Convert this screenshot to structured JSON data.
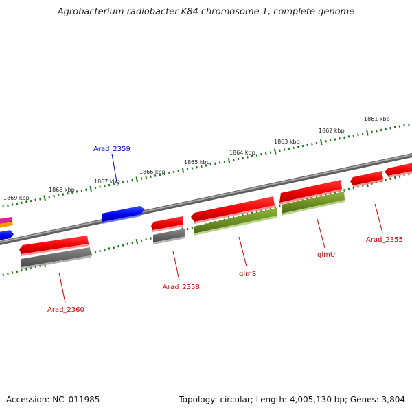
{
  "title": "Agrobacterium radiobacter K84 chromosome 1, complete genome",
  "footer": {
    "accession": "Accession: NC_011985",
    "topology": "Topology: circular; Length: 4,005,130 bp; Genes: 3,804"
  },
  "colors": {
    "cds": "#ff0000",
    "cds_blue": "#0000ff",
    "feature_gray": "#666666",
    "feature_olive": "#6b8e23",
    "ticks": "#1a7a1a",
    "backbone": "#808080",
    "label_red": "#cc0000",
    "label_blue": "#0000cc"
  },
  "scale_labels": [
    "1861 kbp",
    "1862 kbp",
    "1863 kbp",
    "1864 kbp",
    "1865 kbp",
    "1866 kbp",
    "1867 kbp",
    "1868 kbp",
    "1869 kbp"
  ],
  "gene_labels": [
    {
      "id": "arad-2359",
      "text": "Arad_2359",
      "color": "blue"
    },
    {
      "id": "arad-2355",
      "text": "Arad_2355",
      "color": "red"
    },
    {
      "id": "glmu",
      "text": "glmU",
      "color": "red"
    },
    {
      "id": "glms",
      "text": "glmS",
      "color": "red"
    },
    {
      "id": "arad-2358",
      "text": "Arad_2358",
      "color": "red"
    },
    {
      "id": "arad-2360",
      "text": "Arad_2360",
      "color": "red"
    }
  ]
}
